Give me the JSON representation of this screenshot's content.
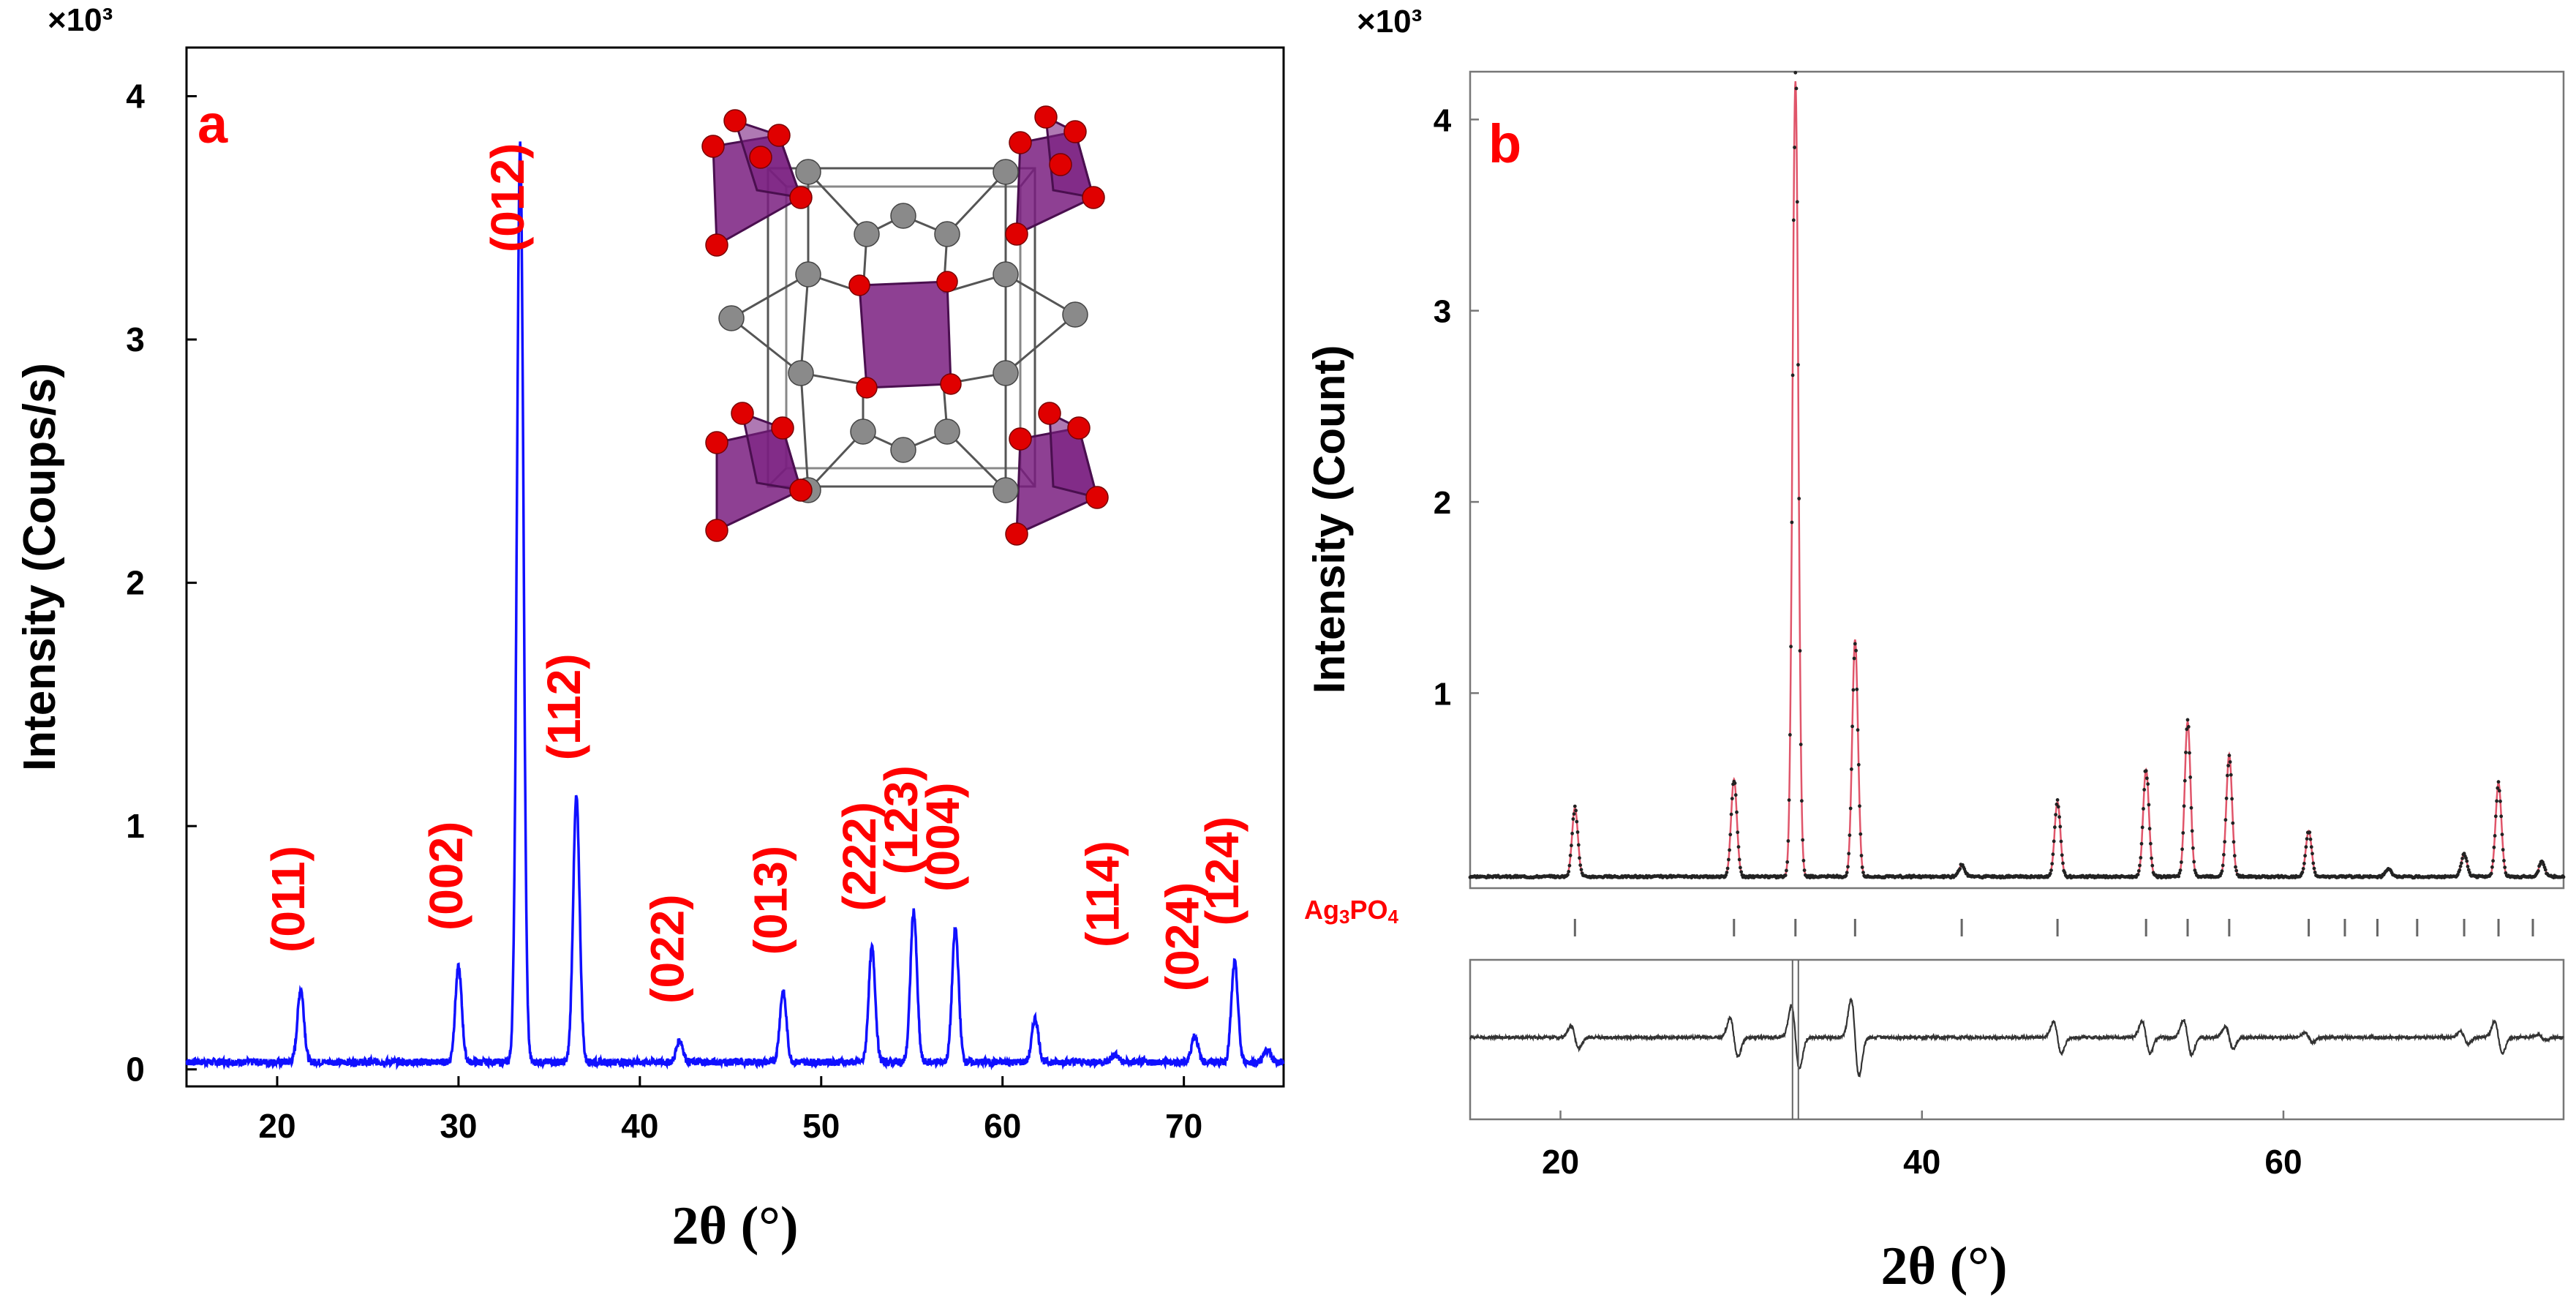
{
  "colors": {
    "pattern_line": "#1010ff",
    "annotation": "#ff0000",
    "calc_line": "#e0556a",
    "observed_points": "#222222",
    "axis": "#000000",
    "polyhedron": "#7a1f80",
    "polyhedron_edge": "#4a0f4f",
    "oxygen": "#e00000",
    "silver": "#8a8a8a",
    "bond": "#555555"
  },
  "icons": [
    "crystal-structure-icon"
  ],
  "chart_data": [
    {
      "type": "line",
      "panel_label": "a",
      "title": "",
      "xlabel": "2θ (°)",
      "ylabel": "Intensity (Coups/s)",
      "y_multiplier": "×10³",
      "xlim": [
        15,
        75.5
      ],
      "ylim": [
        -0.07,
        4.2
      ],
      "xticks": [
        20,
        30,
        40,
        50,
        60,
        70
      ],
      "yticks": [
        0,
        1,
        2,
        3,
        4
      ],
      "baseline": 0.03,
      "peaks": [
        {
          "x": 21.3,
          "y": 0.33,
          "hkl": "(011)"
        },
        {
          "x": 30.0,
          "y": 0.42,
          "hkl": "(002)"
        },
        {
          "x": 33.4,
          "y": 3.8,
          "hkl": "(012)"
        },
        {
          "x": 36.5,
          "y": 1.12,
          "hkl": "(112)"
        },
        {
          "x": 42.2,
          "y": 0.12,
          "hkl": "(022)"
        },
        {
          "x": 47.9,
          "y": 0.32,
          "hkl": "(013)"
        },
        {
          "x": 52.8,
          "y": 0.5,
          "hkl": "(222)"
        },
        {
          "x": 55.1,
          "y": 0.65,
          "hkl": "(123)"
        },
        {
          "x": 57.4,
          "y": 0.58,
          "hkl": "(004)"
        },
        {
          "x": 61.8,
          "y": 0.21,
          "hkl": ""
        },
        {
          "x": 66.2,
          "y": 0.06,
          "hkl": "(114)"
        },
        {
          "x": 70.6,
          "y": 0.14,
          "hkl": "(024)"
        },
        {
          "x": 72.8,
          "y": 0.44,
          "hkl": "(124)"
        },
        {
          "x": 74.6,
          "y": 0.08,
          "hkl": ""
        }
      ],
      "annotations": [
        "(011)",
        "(002)",
        "(012)",
        "(112)",
        "(022)",
        "(013)",
        "(222)",
        "(123)",
        "(004)",
        "(114)",
        "(024)",
        "(124)"
      ]
    },
    {
      "type": "line",
      "panel_label": "b",
      "title": "",
      "xlabel": "2θ (°)",
      "ylabel": "Intensity (Count)",
      "y_multiplier": "×10³",
      "xlim": [
        15,
        75.5
      ],
      "ylim": [
        -0.02,
        4.25
      ],
      "xticks": [
        20,
        40,
        60
      ],
      "yticks": [
        1,
        2,
        3,
        4
      ],
      "baseline": 0.04,
      "series": [
        {
          "name": "calculated",
          "style": "line"
        },
        {
          "name": "observed",
          "style": "points"
        },
        {
          "name": "difference",
          "style": "line"
        }
      ],
      "peaks": [
        {
          "x": 20.8,
          "y": 0.4
        },
        {
          "x": 29.6,
          "y": 0.55
        },
        {
          "x": 33.0,
          "y": 4.2
        },
        {
          "x": 36.3,
          "y": 1.28
        },
        {
          "x": 42.2,
          "y": 0.1
        },
        {
          "x": 47.5,
          "y": 0.43
        },
        {
          "x": 52.4,
          "y": 0.6
        },
        {
          "x": 54.7,
          "y": 0.85
        },
        {
          "x": 57.0,
          "y": 0.68
        },
        {
          "x": 61.4,
          "y": 0.28
        },
        {
          "x": 65.8,
          "y": 0.08
        },
        {
          "x": 70.0,
          "y": 0.16
        },
        {
          "x": 71.9,
          "y": 0.53
        },
        {
          "x": 74.3,
          "y": 0.12
        }
      ],
      "bragg_positions": [
        20.8,
        29.6,
        33.0,
        36.3,
        42.2,
        47.5,
        52.4,
        54.7,
        57.0,
        61.4,
        63.4,
        65.2,
        67.4,
        70.0,
        71.9,
        73.8
      ],
      "phase_label": "Ag3PO4",
      "difference_peaks": [
        {
          "x": 20.8,
          "a": 0.35
        },
        {
          "x": 29.6,
          "a": 0.6
        },
        {
          "x": 33.0,
          "a": 1.0
        },
        {
          "x": 36.3,
          "a": 1.2
        },
        {
          "x": 47.5,
          "a": 0.5
        },
        {
          "x": 52.4,
          "a": 0.5
        },
        {
          "x": 54.7,
          "a": 0.55
        },
        {
          "x": 57.0,
          "a": 0.35
        },
        {
          "x": 61.4,
          "a": 0.15
        },
        {
          "x": 70.0,
          "a": 0.2
        },
        {
          "x": 71.9,
          "a": 0.5
        },
        {
          "x": 74.3,
          "a": 0.1
        }
      ]
    }
  ]
}
